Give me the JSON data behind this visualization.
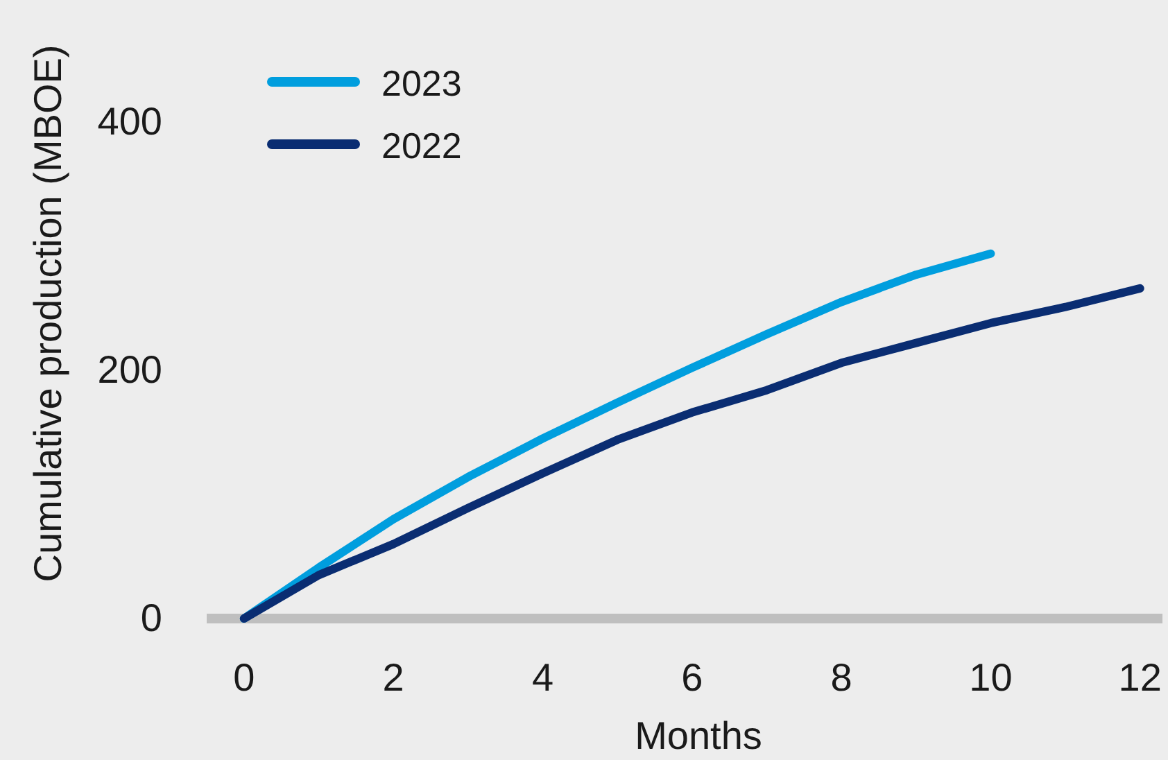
{
  "chart_data": {
    "type": "line",
    "xlabel": "Months",
    "ylabel": "Cumulative production (MBOE)",
    "x": [
      0,
      1,
      2,
      3,
      4,
      5,
      6,
      7,
      8,
      9,
      10,
      11,
      12
    ],
    "series": [
      {
        "name": "2023",
        "color": "#009ede",
        "values": [
          0,
          41,
          80,
          114,
          145,
          174,
          202,
          229,
          255,
          277,
          294,
          null,
          null
        ]
      },
      {
        "name": "2022",
        "color": "#0a2d72",
        "values": [
          0,
          35,
          60,
          89,
          117,
          144,
          166,
          184,
          206,
          222,
          238,
          251,
          266
        ]
      }
    ],
    "xlim": [
      -0.5,
      12.3
    ],
    "ylim": [
      0,
      400
    ],
    "xticks": [
      0,
      2,
      4,
      6,
      8,
      10,
      12
    ],
    "yticks": [
      0,
      200,
      400
    ],
    "legend": "top left",
    "line_style": "solid"
  }
}
